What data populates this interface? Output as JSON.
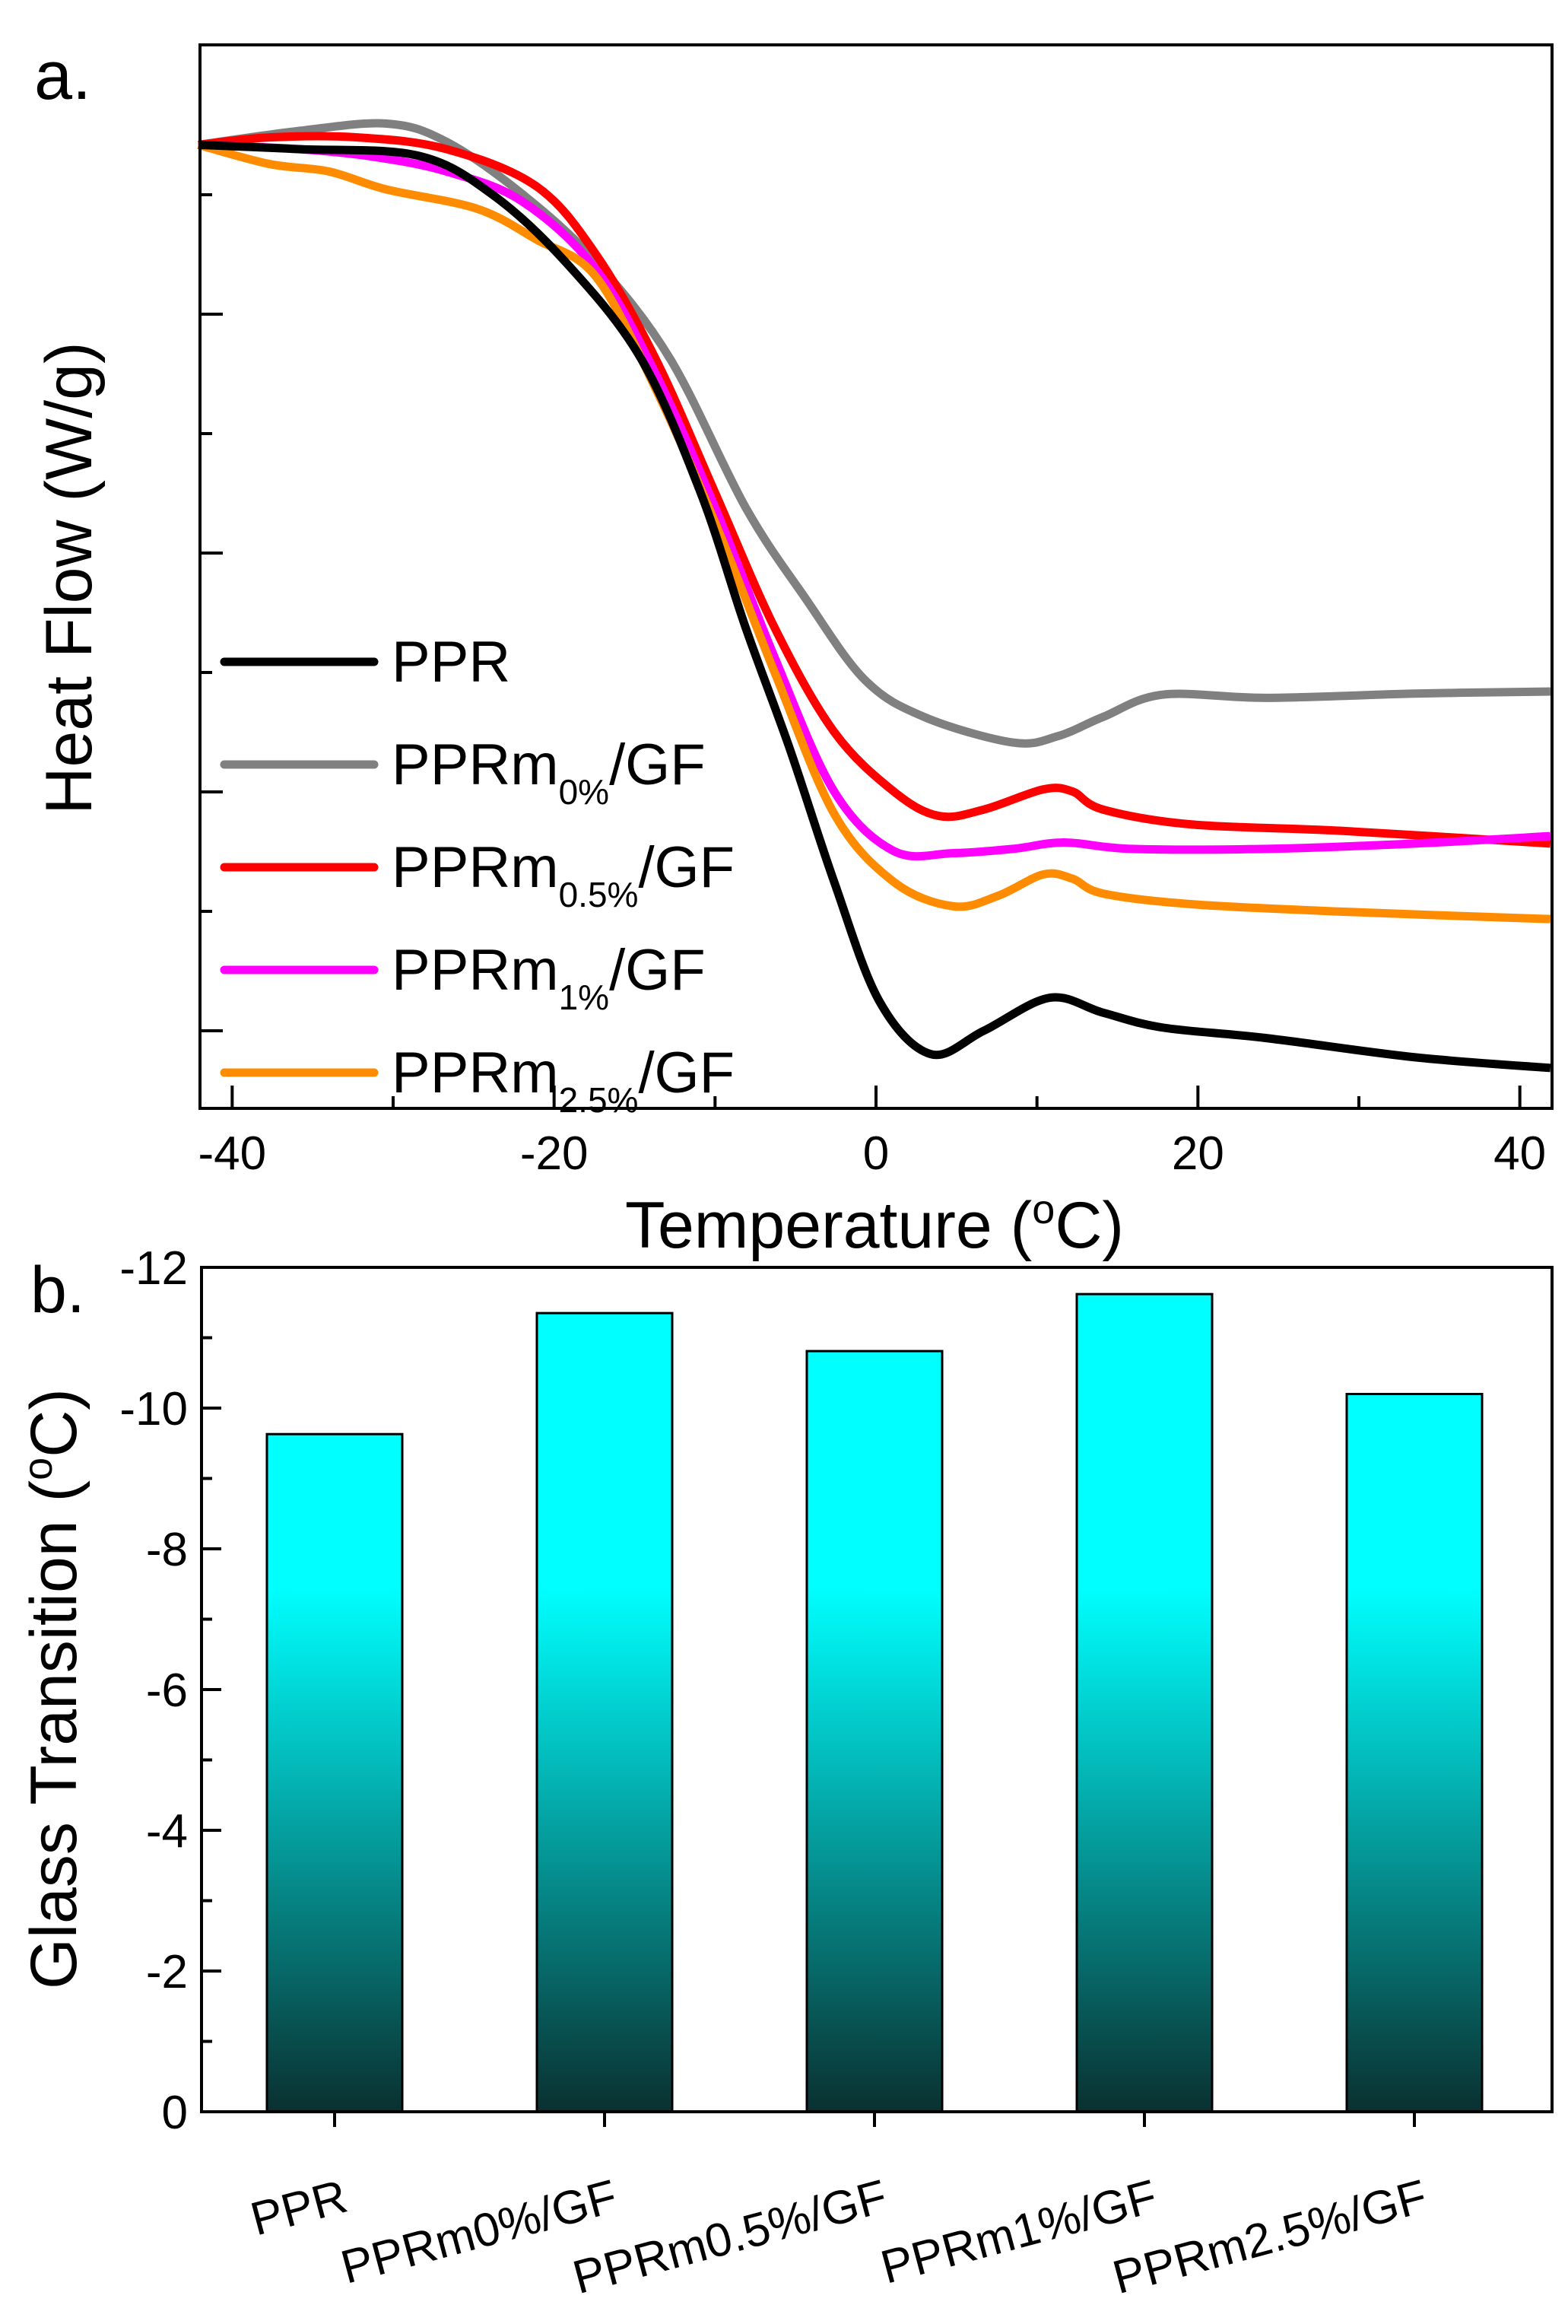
{
  "chart_data": [
    {
      "panel_label": "a.",
      "type": "line",
      "xlabel": "Temperature (",
      "xlabel_unit_deg": "o",
      "xlabel_unit": "C)",
      "ylabel": "Heat Flow (W/g)",
      "xlim": [
        -42,
        42
      ],
      "ylim": [
        0,
        10
      ],
      "y_units": "arbitrary",
      "xticks": [
        -40,
        -20,
        0,
        20,
        40
      ],
      "xtick_labels": [
        "-40",
        "-20",
        "0",
        "20",
        "40"
      ],
      "legend_position": "bottom-left",
      "series": [
        {
          "name": "PPR",
          "base": "PPR",
          "sub": "",
          "suffix": "",
          "color": "#000000",
          "points": [
            [
              -42.1,
              9.06
            ],
            [
              -35.9,
              9.02
            ],
            [
              -28.5,
              8.96
            ],
            [
              -23.9,
              8.6
            ],
            [
              -19.3,
              7.96
            ],
            [
              -14.6,
              7.05
            ],
            [
              -10.9,
              5.79
            ],
            [
              -8.1,
              4.52
            ],
            [
              -5.4,
              3.4
            ],
            [
              -2.6,
              2.13
            ],
            [
              0.2,
              1.01
            ],
            [
              3.4,
              0.51
            ],
            [
              6.7,
              0.73
            ],
            [
              10.8,
              1.04
            ],
            [
              14.1,
              0.9
            ],
            [
              17.8,
              0.76
            ],
            [
              24.3,
              0.66
            ],
            [
              33.5,
              0.48
            ],
            [
              41.9,
              0.38
            ]
          ]
        },
        {
          "name": "PPRm0%/GF",
          "base": "PPRm",
          "sub": "0%",
          "suffix": "/GF",
          "color": "#808080",
          "points": [
            [
              -42.1,
              9.06
            ],
            [
              -35.9,
              9.19
            ],
            [
              -30.4,
              9.26
            ],
            [
              -26.7,
              9.09
            ],
            [
              -22,
              8.6
            ],
            [
              -17.4,
              7.96
            ],
            [
              -12.8,
              7.05
            ],
            [
              -8.1,
              5.65
            ],
            [
              -4.4,
              4.8
            ],
            [
              -0.7,
              4.03
            ],
            [
              3,
              3.68
            ],
            [
              8.5,
              3.44
            ],
            [
              11.3,
              3.5
            ],
            [
              14.1,
              3.68
            ],
            [
              17.8,
              3.89
            ],
            [
              24.3,
              3.86
            ],
            [
              33.5,
              3.9
            ],
            [
              41.9,
              3.92
            ]
          ]
        },
        {
          "name": "PPRm0.5%/GF",
          "base": "PPRm",
          "sub": "0.5%",
          "suffix": "/GF",
          "color": "#ff0000",
          "points": [
            [
              -42.1,
              9.06
            ],
            [
              -37.7,
              9.13
            ],
            [
              -32.2,
              9.13
            ],
            [
              -26.7,
              9.02
            ],
            [
              -21.1,
              8.67
            ],
            [
              -17.4,
              8.03
            ],
            [
              -13.7,
              7.05
            ],
            [
              -10,
              5.79
            ],
            [
              -6.3,
              4.52
            ],
            [
              -2.6,
              3.54
            ],
            [
              1.1,
              2.98
            ],
            [
              3.9,
              2.75
            ],
            [
              6.7,
              2.81
            ],
            [
              10.4,
              3.0
            ],
            [
              12.2,
              2.98
            ],
            [
              14.1,
              2.81
            ],
            [
              19.6,
              2.67
            ],
            [
              28.9,
              2.61
            ],
            [
              41.9,
              2.49
            ]
          ]
        },
        {
          "name": "PPRm1%/GF",
          "base": "PPRm",
          "sub": "1%",
          "suffix": "/GF",
          "color": "#ff00ff",
          "points": [
            [
              -42.1,
              9.06
            ],
            [
              -35.9,
              9.02
            ],
            [
              -31.3,
              8.95
            ],
            [
              -26.7,
              8.81
            ],
            [
              -22,
              8.53
            ],
            [
              -17.4,
              7.89
            ],
            [
              -13.7,
              6.91
            ],
            [
              -10,
              5.65
            ],
            [
              -6.3,
              4.24
            ],
            [
              -2.6,
              2.98
            ],
            [
              1.1,
              2.42
            ],
            [
              4.8,
              2.4
            ],
            [
              8.5,
              2.44
            ],
            [
              11.7,
              2.5
            ],
            [
              15.9,
              2.44
            ],
            [
              24.3,
              2.44
            ],
            [
              33.5,
              2.49
            ],
            [
              41.9,
              2.56
            ]
          ]
        },
        {
          "name": "PPRm2.5%/GF",
          "base": "PPRm",
          "sub": "2.5%",
          "suffix": "/GF",
          "color": "#ff8c00",
          "points": [
            [
              -42.1,
              9.06
            ],
            [
              -37.7,
              8.88
            ],
            [
              -34,
              8.81
            ],
            [
              -30.4,
              8.64
            ],
            [
              -24.8,
              8.46
            ],
            [
              -21.1,
              8.17
            ],
            [
              -17.4,
              7.82
            ],
            [
              -13.7,
              6.77
            ],
            [
              -10,
              5.51
            ],
            [
              -6.3,
              4.1
            ],
            [
              -2.6,
              2.77
            ],
            [
              1.1,
              2.13
            ],
            [
              4.8,
              1.9
            ],
            [
              7.6,
              2.0
            ],
            [
              10.4,
              2.2
            ],
            [
              12.2,
              2.16
            ],
            [
              14.1,
              2.02
            ],
            [
              19.6,
              1.92
            ],
            [
              28.9,
              1.85
            ],
            [
              41.9,
              1.78
            ]
          ]
        }
      ]
    },
    {
      "panel_label": "b.",
      "type": "bar",
      "ylabel": "Glass Transition (",
      "ylabel_unit_deg": "o",
      "ylabel_unit": "C)",
      "categories": [
        "PPR",
        "PPRm0%/GF",
        "PPRm0.5%/GF",
        "PPRm1%/GF",
        "PPRm2.5%/GF"
      ],
      "values": [
        -9.63,
        -11.35,
        -10.81,
        -11.62,
        -10.2
      ],
      "ylim": [
        0,
        -12
      ],
      "yticks": [
        0,
        -2,
        -4,
        -6,
        -8,
        -10,
        -12
      ],
      "ytick_labels": [
        "0",
        "-2",
        "-4",
        "-6",
        "-8",
        "-10",
        "-12"
      ],
      "bar_color_top": "#00ffff",
      "bar_color_bottom": "#0a3030"
    }
  ]
}
